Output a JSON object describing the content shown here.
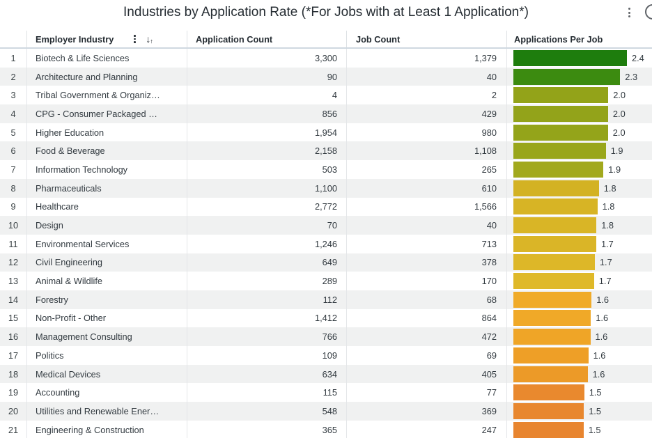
{
  "title": "Industries by Application Rate (*For Jobs with at Least 1 Application*)",
  "icons": {
    "tile_menu": "kebab-vertical",
    "header_menu": "kebab-vertical",
    "sort": "arrow-down-up",
    "edge_sort_arrow": "arrow-down"
  },
  "columns": [
    {
      "label": "Employer Industry"
    },
    {
      "label": "Application Count"
    },
    {
      "label": "Job Count"
    },
    {
      "label": "Applications Per Job"
    }
  ],
  "colors": {
    "stripe": "#f0f1f1",
    "header_underline": "#cfd8e0",
    "text": "#323a40"
  },
  "chart_data": {
    "type": "table",
    "title": "Industries by Application Rate (*For Jobs with at Least 1 Application*)",
    "columns": [
      "Employer Industry",
      "Application Count",
      "Job Count",
      "Applications Per Job"
    ],
    "bar_scale_max": 2.393,
    "rows": [
      {
        "rank": "1",
        "industry": "Biotech & Life Sciences",
        "applications": "3,300",
        "jobs": "1,379",
        "app_n": 3300,
        "job_n": 1379,
        "ratio": "2.4",
        "bar_color": "#1e7d0d"
      },
      {
        "rank": "2",
        "industry": "Architecture and Planning",
        "applications": "90",
        "jobs": "40",
        "app_n": 90,
        "job_n": 40,
        "ratio": "2.3",
        "bar_color": "#3c8b10"
      },
      {
        "rank": "3",
        "industry": "Tribal Government & Organiz…",
        "applications": "4",
        "jobs": "2",
        "app_n": 4,
        "job_n": 2,
        "ratio": "2.0",
        "bar_color": "#93a319"
      },
      {
        "rank": "4",
        "industry": "CPG - Consumer Packaged …",
        "applications": "856",
        "jobs": "429",
        "app_n": 856,
        "job_n": 429,
        "ratio": "2.0",
        "bar_color": "#93a31a"
      },
      {
        "rank": "5",
        "industry": "Higher Education",
        "applications": "1,954",
        "jobs": "980",
        "app_n": 1954,
        "job_n": 980,
        "ratio": "2.0",
        "bar_color": "#94a41a"
      },
      {
        "rank": "6",
        "industry": "Food & Beverage",
        "applications": "2,158",
        "jobs": "1,108",
        "app_n": 2158,
        "job_n": 1108,
        "ratio": "1.9",
        "bar_color": "#99a61b"
      },
      {
        "rank": "7",
        "industry": "Information Technology",
        "applications": "503",
        "jobs": "265",
        "app_n": 503,
        "job_n": 265,
        "ratio": "1.9",
        "bar_color": "#a2a91d"
      },
      {
        "rank": "8",
        "industry": "Pharmaceuticals",
        "applications": "1,100",
        "jobs": "610",
        "app_n": 1100,
        "job_n": 610,
        "ratio": "1.8",
        "bar_color": "#d3b223"
      },
      {
        "rank": "9",
        "industry": "Healthcare",
        "applications": "2,772",
        "jobs": "1,566",
        "app_n": 2772,
        "job_n": 1566,
        "ratio": "1.8",
        "bar_color": "#d7b425"
      },
      {
        "rank": "10",
        "industry": "Design",
        "applications": "70",
        "jobs": "40",
        "app_n": 70,
        "job_n": 40,
        "ratio": "1.8",
        "bar_color": "#d9b526"
      },
      {
        "rank": "11",
        "industry": "Environmental Services",
        "applications": "1,246",
        "jobs": "713",
        "app_n": 1246,
        "job_n": 713,
        "ratio": "1.7",
        "bar_color": "#dab527"
      },
      {
        "rank": "12",
        "industry": "Civil Engineering",
        "applications": "649",
        "jobs": "378",
        "app_n": 649,
        "job_n": 378,
        "ratio": "1.7",
        "bar_color": "#ddb728"
      },
      {
        "rank": "13",
        "industry": "Animal & Wildlife",
        "applications": "289",
        "jobs": "170",
        "app_n": 289,
        "job_n": 170,
        "ratio": "1.7",
        "bar_color": "#dfb929"
      },
      {
        "rank": "14",
        "industry": "Forestry",
        "applications": "112",
        "jobs": "68",
        "app_n": 112,
        "job_n": 68,
        "ratio": "1.6",
        "bar_color": "#f0ab29"
      },
      {
        "rank": "15",
        "industry": "Non-Profit - Other",
        "applications": "1,412",
        "jobs": "864",
        "app_n": 1412,
        "job_n": 864,
        "ratio": "1.6",
        "bar_color": "#f0a928"
      },
      {
        "rank": "16",
        "industry": "Management Consulting",
        "applications": "766",
        "jobs": "472",
        "app_n": 766,
        "job_n": 472,
        "ratio": "1.6",
        "bar_color": "#efa527"
      },
      {
        "rank": "17",
        "industry": "Politics",
        "applications": "109",
        "jobs": "69",
        "app_n": 109,
        "job_n": 69,
        "ratio": "1.6",
        "bar_color": "#ee9f27"
      },
      {
        "rank": "18",
        "industry": "Medical Devices",
        "applications": "634",
        "jobs": "405",
        "app_n": 634,
        "job_n": 405,
        "ratio": "1.6",
        "bar_color": "#ec9a28"
      },
      {
        "rank": "19",
        "industry": "Accounting",
        "applications": "115",
        "jobs": "77",
        "app_n": 115,
        "job_n": 77,
        "ratio": "1.5",
        "bar_color": "#e9892e"
      },
      {
        "rank": "20",
        "industry": "Utilities and Renewable Ener…",
        "applications": "548",
        "jobs": "369",
        "app_n": 548,
        "job_n": 369,
        "ratio": "1.5",
        "bar_color": "#e8872e"
      },
      {
        "rank": "21",
        "industry": "Engineering & Construction",
        "applications": "365",
        "jobs": "247",
        "app_n": 365,
        "job_n": 247,
        "ratio": "1.5",
        "bar_color": "#e8852f"
      }
    ]
  }
}
